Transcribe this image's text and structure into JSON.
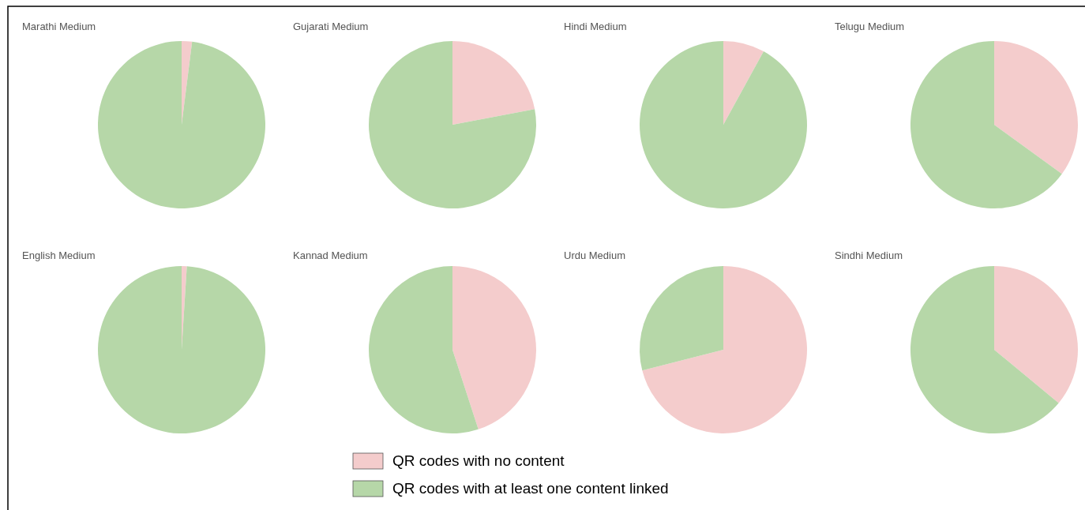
{
  "chart_data": [
    {
      "type": "pie",
      "title": "Marathi Medium",
      "categories": [
        "QR codes with no content",
        "QR codes with at least one content linked"
      ],
      "values": [
        2,
        98
      ],
      "colors": [
        "#f4cccc",
        "#b6d7a8"
      ],
      "legend": "bottom"
    },
    {
      "type": "pie",
      "title": "Gujarati Medium",
      "categories": [
        null,
        null
      ],
      "values": [
        22,
        78
      ],
      "colors": [
        "#f4cccc",
        "#b6d7a8"
      ]
    },
    {
      "type": "pie",
      "title": "Hindi Medium",
      "categories": [
        null,
        null
      ],
      "values": [
        8,
        92
      ],
      "colors": [
        "#f4cccc",
        "#b6d7a8"
      ]
    },
    {
      "type": "pie",
      "title": "Telugu Medium",
      "categories": [
        null,
        null
      ],
      "values": [
        35,
        65
      ],
      "colors": [
        "#f4cccc",
        "#b6d7a8"
      ]
    },
    {
      "type": "pie",
      "title": "English Medium",
      "categories": [
        null,
        null
      ],
      "values": [
        1,
        99
      ],
      "colors": [
        "#f4cccc",
        "#b6d7a8"
      ]
    },
    {
      "type": "pie",
      "title": "Kannad Medium",
      "categories": [
        null,
        null
      ],
      "values": [
        45,
        55
      ],
      "colors": [
        "#f4cccc",
        "#b6d7a8"
      ]
    },
    {
      "type": "pie",
      "title": "Urdu Medium",
      "categories": [
        null,
        null
      ],
      "values": [
        71,
        29
      ],
      "colors": [
        "#f4cccc",
        "#b6d7a8"
      ]
    },
    {
      "type": "pie",
      "title": "Sindhi Medium",
      "categories": [
        null,
        null
      ],
      "values": [
        36,
        64
      ],
      "colors": [
        "#f4cccc",
        "#b6d7a8"
      ]
    }
  ]
}
